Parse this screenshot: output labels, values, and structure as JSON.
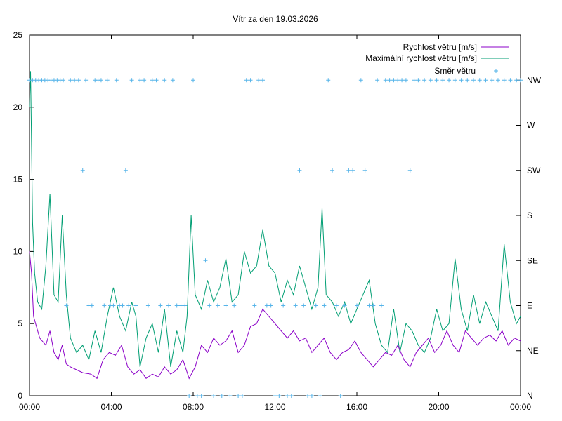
{
  "chart_data": {
    "type": "line",
    "title": "Vítr za den 19.03.2026",
    "x_tick_labels": [
      "00:00",
      "04:00",
      "08:00",
      "12:00",
      "16:00",
      "20:00",
      "00:00"
    ],
    "x_range_hours": [
      0,
      24
    ],
    "y_left": {
      "min": 0,
      "max": 25,
      "ticks": [
        0,
        5,
        10,
        15,
        20,
        25
      ]
    },
    "y_right_directions": [
      "N",
      "NE",
      "E",
      "SE",
      "S",
      "SW",
      "W",
      "NW"
    ],
    "colors": {
      "speed": "#8b00c8",
      "gust": "#009e73",
      "direction": "#56b4e9"
    },
    "series": [
      {
        "name": "Rychlost větru [m/s]",
        "style": "line",
        "x": [
          0.0,
          0.1,
          0.2,
          0.3,
          0.5,
          0.8,
          1.0,
          1.2,
          1.4,
          1.6,
          1.8,
          2.0,
          2.3,
          2.6,
          3.0,
          3.3,
          3.6,
          3.9,
          4.2,
          4.5,
          4.8,
          5.1,
          5.4,
          5.7,
          6.0,
          6.3,
          6.6,
          6.9,
          7.2,
          7.5,
          7.8,
          8.1,
          8.4,
          8.7,
          9.0,
          9.3,
          9.6,
          9.9,
          10.2,
          10.5,
          10.8,
          11.1,
          11.4,
          11.7,
          12.0,
          12.3,
          12.6,
          12.9,
          13.2,
          13.5,
          13.8,
          14.1,
          14.4,
          14.7,
          15.0,
          15.3,
          15.6,
          15.9,
          16.2,
          16.5,
          16.8,
          17.1,
          17.4,
          17.7,
          18.0,
          18.3,
          18.6,
          18.9,
          19.2,
          19.5,
          19.8,
          20.1,
          20.4,
          20.7,
          21.0,
          21.3,
          21.6,
          21.9,
          22.2,
          22.5,
          22.8,
          23.1,
          23.4,
          23.7,
          24.0
        ],
        "values": [
          10.0,
          8.5,
          5.5,
          5.0,
          4.0,
          3.5,
          4.5,
          3.0,
          2.5,
          3.5,
          2.2,
          2.0,
          1.8,
          1.6,
          1.5,
          1.2,
          2.5,
          3.0,
          2.8,
          3.5,
          2.0,
          1.5,
          1.8,
          1.2,
          1.5,
          1.3,
          2.0,
          1.5,
          1.8,
          2.5,
          1.2,
          2.0,
          3.5,
          3.0,
          4.0,
          3.5,
          3.8,
          4.5,
          3.0,
          3.5,
          4.8,
          5.0,
          6.0,
          5.5,
          5.0,
          4.5,
          4.0,
          4.5,
          3.8,
          4.0,
          3.0,
          3.5,
          4.0,
          3.0,
          2.5,
          3.0,
          3.2,
          3.8,
          3.0,
          2.5,
          2.0,
          2.5,
          3.0,
          2.8,
          3.5,
          2.5,
          2.0,
          3.0,
          3.5,
          4.0,
          3.0,
          3.5,
          4.5,
          3.5,
          3.0,
          4.5,
          4.0,
          3.5,
          4.0,
          4.2,
          3.8,
          4.5,
          3.5,
          4.0,
          3.8
        ]
      },
      {
        "name": "Maximální rychlost větru [m/s]",
        "style": "line",
        "x": [
          0.0,
          0.05,
          0.15,
          0.25,
          0.4,
          0.6,
          0.8,
          1.0,
          1.2,
          1.4,
          1.6,
          1.8,
          2.0,
          2.3,
          2.6,
          2.9,
          3.2,
          3.5,
          3.8,
          4.1,
          4.4,
          4.7,
          5.0,
          5.2,
          5.4,
          5.7,
          6.0,
          6.3,
          6.6,
          6.9,
          7.2,
          7.5,
          7.7,
          7.9,
          8.1,
          8.4,
          8.7,
          9.0,
          9.3,
          9.6,
          9.9,
          10.2,
          10.5,
          10.8,
          11.1,
          11.4,
          11.7,
          12.0,
          12.3,
          12.6,
          12.9,
          13.2,
          13.5,
          13.8,
          14.1,
          14.3,
          14.5,
          14.8,
          15.1,
          15.4,
          15.7,
          16.0,
          16.3,
          16.6,
          16.9,
          17.2,
          17.5,
          17.8,
          18.1,
          18.4,
          18.7,
          19.0,
          19.3,
          19.6,
          19.9,
          20.2,
          20.5,
          20.8,
          21.1,
          21.4,
          21.7,
          22.0,
          22.3,
          22.6,
          22.9,
          23.2,
          23.5,
          23.8,
          24.0
        ],
        "values": [
          20.0,
          22.5,
          12.0,
          8.5,
          6.5,
          6.0,
          9.0,
          14.0,
          7.0,
          6.5,
          12.5,
          7.0,
          4.0,
          3.0,
          3.5,
          2.5,
          4.5,
          3.0,
          5.5,
          7.5,
          5.5,
          4.5,
          6.5,
          5.5,
          2.0,
          4.0,
          5.0,
          3.0,
          6.0,
          2.0,
          4.5,
          3.0,
          5.5,
          12.5,
          7.0,
          6.0,
          8.0,
          6.5,
          7.5,
          9.5,
          6.5,
          7.0,
          10.0,
          8.5,
          9.0,
          11.5,
          9.0,
          8.5,
          6.5,
          8.0,
          7.0,
          9.0,
          7.5,
          6.0,
          7.5,
          13.0,
          7.0,
          6.5,
          5.5,
          6.5,
          5.0,
          6.0,
          7.0,
          8.0,
          5.0,
          3.5,
          3.0,
          6.0,
          3.0,
          5.0,
          4.5,
          3.5,
          3.0,
          4.0,
          6.0,
          4.5,
          5.0,
          9.5,
          6.0,
          4.5,
          7.0,
          5.0,
          6.5,
          5.5,
          4.5,
          10.5,
          6.5,
          5.0,
          5.5
        ]
      },
      {
        "name": "Směr větru",
        "style": "points",
        "x": [
          0.0,
          0.15,
          0.3,
          0.45,
          0.6,
          0.75,
          0.9,
          1.05,
          1.2,
          1.35,
          1.5,
          1.65,
          1.8,
          2.0,
          2.2,
          2.4,
          2.6,
          2.75,
          2.9,
          3.05,
          3.2,
          3.35,
          3.5,
          3.65,
          3.8,
          3.95,
          4.1,
          4.25,
          4.4,
          4.55,
          4.7,
          4.85,
          5.0,
          5.2,
          5.4,
          5.6,
          5.8,
          6.0,
          6.2,
          6.4,
          6.6,
          6.8,
          7.0,
          7.2,
          7.4,
          7.6,
          7.8,
          8.0,
          8.2,
          8.4,
          8.6,
          8.8,
          9.0,
          9.2,
          9.4,
          9.6,
          9.8,
          10.0,
          10.2,
          10.4,
          10.6,
          10.8,
          11.0,
          11.2,
          11.4,
          11.6,
          11.8,
          12.0,
          12.2,
          12.4,
          12.6,
          12.8,
          13.0,
          13.2,
          13.4,
          13.6,
          13.8,
          14.0,
          14.2,
          14.4,
          14.6,
          14.8,
          15.0,
          15.2,
          15.4,
          15.6,
          15.8,
          16.0,
          16.2,
          16.4,
          16.6,
          16.8,
          17.0,
          17.2,
          17.4,
          17.6,
          17.8,
          18.0,
          18.2,
          18.4,
          18.6,
          18.8,
          19.0,
          19.3,
          19.6,
          19.9,
          20.2,
          20.5,
          20.8,
          21.1,
          21.4,
          21.7,
          22.0,
          22.3,
          22.6,
          22.9,
          23.2,
          23.5,
          23.8,
          24.0
        ],
        "values": [
          "NW",
          "NW",
          "NW",
          "NW",
          "NW",
          "NW",
          "NW",
          "NW",
          "NW",
          "NW",
          "NW",
          "NW",
          "E",
          "NW",
          "NW",
          "NW",
          "SW",
          "NW",
          "E",
          "E",
          "NW",
          "NW",
          "NW",
          "E",
          "NW",
          "E",
          "E",
          "NW",
          "E",
          "E",
          "SW",
          "E",
          "NW",
          "E",
          "NW",
          "NW",
          "E",
          "NW",
          "NW",
          "E",
          "NW",
          "E",
          "NW",
          "E",
          "E",
          "E",
          "N",
          "NW",
          "N",
          "N",
          "SE",
          "E",
          "N",
          "E",
          "N",
          "E",
          "N",
          "E",
          "N",
          "N",
          "NW",
          "NW",
          "E",
          "NW",
          "NW",
          "E",
          "E",
          "N",
          "N",
          "E",
          "N",
          "N",
          "E",
          "SW",
          "E",
          "N",
          "N",
          "E",
          "N",
          "E",
          "NW",
          "SW",
          "E",
          "N",
          "E",
          "SW",
          "SW",
          "E",
          "NW",
          "SW",
          "E",
          "E",
          "NW",
          "E",
          "NW",
          "NW",
          "NW",
          "NW",
          "NW",
          "NW",
          "SW",
          "NW",
          "NW",
          "NW",
          "NW",
          "NW",
          "NW",
          "NW",
          "NW",
          "NW",
          "NW",
          "NW",
          "NW",
          "NW",
          "NW",
          "NW",
          "NW",
          "NW",
          "NW",
          "NW"
        ]
      }
    ],
    "legend_position": "top-right"
  }
}
